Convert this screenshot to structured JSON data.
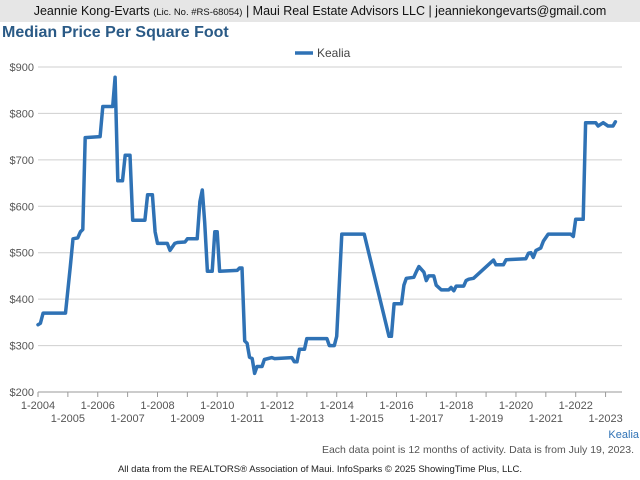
{
  "header": {
    "name": "Jeannie Kong-Evarts",
    "license": "(Lic. No. #RS-68054)",
    "rest": "| Maui Real Estate Advisors LLC | jeanniekongevarts@gmail.com"
  },
  "footnote": "Each data point is 12 months of activity. Data is from July 19, 2023.",
  "footer": "All data from the REALTORS® Association of Maui. InfoSparks © 2025 ShowingTime Plus, LLC.",
  "colors": {
    "series": "#2f72b5",
    "title": "#2a5a86",
    "grid": "#cfcfcf"
  },
  "chart_data": {
    "type": "line",
    "title": "Median Price Per Square Foot",
    "legend_position": "top-center",
    "grid": true,
    "ylim": [
      200,
      900
    ],
    "yticks": [
      {
        "value": 200,
        "label": "$200"
      },
      {
        "value": 300,
        "label": "$300"
      },
      {
        "value": 400,
        "label": "$400"
      },
      {
        "value": 500,
        "label": "$500"
      },
      {
        "value": 600,
        "label": "$600"
      },
      {
        "value": 700,
        "label": "$700"
      },
      {
        "value": 800,
        "label": "$800"
      },
      {
        "value": 900,
        "label": "$900"
      }
    ],
    "xlim": [
      2004.0,
      2023.55
    ],
    "xticks": [
      {
        "value": 2004,
        "label": "1-2004"
      },
      {
        "value": 2005,
        "label": "1-2005"
      },
      {
        "value": 2006,
        "label": "1-2006"
      },
      {
        "value": 2007,
        "label": "1-2007"
      },
      {
        "value": 2008,
        "label": "1-2008"
      },
      {
        "value": 2009,
        "label": "1-2009"
      },
      {
        "value": 2010,
        "label": "1-2010"
      },
      {
        "value": 2011,
        "label": "1-2011"
      },
      {
        "value": 2012,
        "label": "1-2012"
      },
      {
        "value": 2013,
        "label": "1-2013"
      },
      {
        "value": 2014,
        "label": "1-2014"
      },
      {
        "value": 2015,
        "label": "1-2015"
      },
      {
        "value": 2016,
        "label": "1-2016"
      },
      {
        "value": 2017,
        "label": "1-2017"
      },
      {
        "value": 2018,
        "label": "1-2018"
      },
      {
        "value": 2019,
        "label": "1-2019"
      },
      {
        "value": 2020,
        "label": "1-2020"
      },
      {
        "value": 2021,
        "label": "1-2021"
      },
      {
        "value": 2022,
        "label": "1-2022"
      },
      {
        "value": 2023,
        "label": "1-2023"
      }
    ],
    "end_label": "Kealia",
    "series": [
      {
        "name": "Kealia",
        "points": [
          [
            2004.0,
            345
          ],
          [
            2004.08,
            348
          ],
          [
            2004.17,
            370
          ],
          [
            2004.92,
            370
          ],
          [
            2005.08,
            470
          ],
          [
            2005.17,
            530
          ],
          [
            2005.33,
            532
          ],
          [
            2005.42,
            545
          ],
          [
            2005.5,
            550
          ],
          [
            2005.58,
            748
          ],
          [
            2006.08,
            750
          ],
          [
            2006.17,
            815
          ],
          [
            2006.5,
            815
          ],
          [
            2006.58,
            878
          ],
          [
            2006.67,
            655
          ],
          [
            2006.83,
            655
          ],
          [
            2006.92,
            710
          ],
          [
            2007.08,
            710
          ],
          [
            2007.17,
            570
          ],
          [
            2007.58,
            570
          ],
          [
            2007.67,
            625
          ],
          [
            2007.83,
            625
          ],
          [
            2007.92,
            545
          ],
          [
            2008.0,
            520
          ],
          [
            2008.33,
            520
          ],
          [
            2008.42,
            505
          ],
          [
            2008.58,
            520
          ],
          [
            2008.67,
            522
          ],
          [
            2008.92,
            523
          ],
          [
            2009.0,
            530
          ],
          [
            2009.33,
            530
          ],
          [
            2009.42,
            610
          ],
          [
            2009.5,
            635
          ],
          [
            2009.58,
            565
          ],
          [
            2009.67,
            460
          ],
          [
            2009.83,
            460
          ],
          [
            2009.92,
            545
          ],
          [
            2010.0,
            545
          ],
          [
            2010.08,
            460
          ],
          [
            2010.67,
            462
          ],
          [
            2010.75,
            467
          ],
          [
            2010.83,
            467
          ],
          [
            2010.92,
            310
          ],
          [
            2011.0,
            305
          ],
          [
            2011.08,
            275
          ],
          [
            2011.17,
            272
          ],
          [
            2011.25,
            240
          ],
          [
            2011.33,
            255
          ],
          [
            2011.5,
            255
          ],
          [
            2011.58,
            270
          ],
          [
            2011.83,
            274
          ],
          [
            2011.92,
            272
          ],
          [
            2012.5,
            274
          ],
          [
            2012.58,
            265
          ],
          [
            2012.67,
            265
          ],
          [
            2012.75,
            292
          ],
          [
            2012.92,
            292
          ],
          [
            2013.0,
            315
          ],
          [
            2013.67,
            315
          ],
          [
            2013.75,
            300
          ],
          [
            2013.92,
            300
          ],
          [
            2014.0,
            320
          ],
          [
            2014.17,
            540
          ],
          [
            2014.92,
            540
          ],
          [
            2015.75,
            320
          ],
          [
            2015.83,
            320
          ],
          [
            2015.92,
            390
          ],
          [
            2016.17,
            390
          ],
          [
            2016.25,
            430
          ],
          [
            2016.33,
            445
          ],
          [
            2016.58,
            447
          ],
          [
            2016.67,
            460
          ],
          [
            2016.75,
            470
          ],
          [
            2016.92,
            458
          ],
          [
            2017.0,
            440
          ],
          [
            2017.08,
            450
          ],
          [
            2017.25,
            450
          ],
          [
            2017.33,
            430
          ],
          [
            2017.5,
            420
          ],
          [
            2017.75,
            420
          ],
          [
            2017.83,
            425
          ],
          [
            2017.92,
            418
          ],
          [
            2018.0,
            428
          ],
          [
            2018.25,
            428
          ],
          [
            2018.33,
            440
          ],
          [
            2018.42,
            443
          ],
          [
            2018.58,
            445
          ],
          [
            2019.25,
            484
          ],
          [
            2019.33,
            474
          ],
          [
            2019.58,
            474
          ],
          [
            2019.67,
            485
          ],
          [
            2020.33,
            487
          ],
          [
            2020.42,
            499
          ],
          [
            2020.5,
            500
          ],
          [
            2020.58,
            490
          ],
          [
            2020.67,
            505
          ],
          [
            2020.83,
            510
          ],
          [
            2020.92,
            525
          ],
          [
            2021.08,
            540
          ],
          [
            2021.83,
            540
          ],
          [
            2021.92,
            535
          ],
          [
            2022.0,
            572
          ],
          [
            2022.25,
            572
          ],
          [
            2022.33,
            780
          ],
          [
            2022.67,
            780
          ],
          [
            2022.75,
            773
          ],
          [
            2022.92,
            780
          ],
          [
            2023.08,
            773
          ],
          [
            2023.25,
            773
          ],
          [
            2023.33,
            782
          ]
        ]
      }
    ]
  }
}
